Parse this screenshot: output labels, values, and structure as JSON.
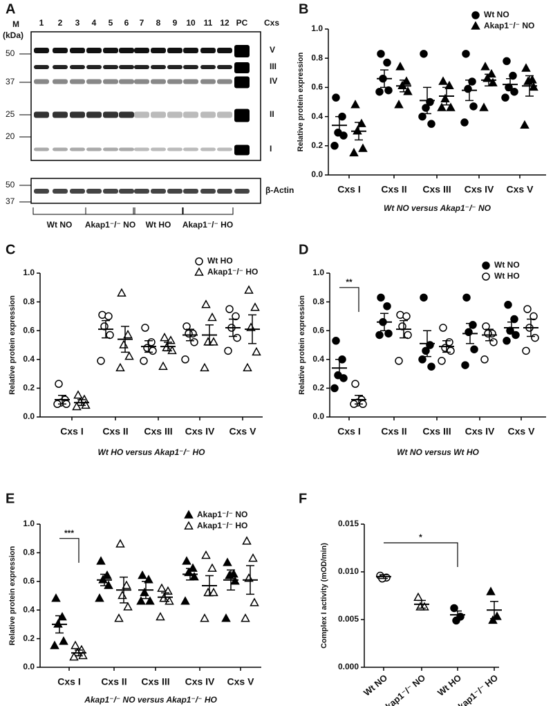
{
  "blot": {
    "panel": "A",
    "marker_title": "M",
    "marker_unit": "(kDa)",
    "lanes": [
      "1",
      "2",
      "3",
      "4",
      "5",
      "6",
      "7",
      "8",
      "9",
      "10",
      "11",
      "12",
      "PC"
    ],
    "lanes_title": "Cxs",
    "markers": [
      50,
      37,
      25,
      20
    ],
    "complexes": [
      "V",
      "III",
      "IV",
      "II",
      "I"
    ],
    "actin_markers": [
      50,
      37
    ],
    "actin_label": "β-Actin",
    "groups": [
      "Wt NO",
      "Akap1⁻/⁻ NO",
      "Wt HO",
      "Akap1⁻/⁻ HO"
    ]
  },
  "chart_data": [
    {
      "type": "dot",
      "panel": "B",
      "ylabel": "Relative protein expression",
      "xlabel": "Wt NO versus Akap1⁻/⁻ NO",
      "categories": [
        "Cxs I",
        "Cxs II",
        "Cxs III",
        "Cxs IV",
        "Cxs V"
      ],
      "ylim": [
        0,
        1
      ],
      "yticks": [
        {
          "value": 0,
          "label": "0.0"
        },
        0.2,
        0.4,
        0.6,
        0.8,
        {
          "value": 1,
          "label": "1.0"
        }
      ],
      "series": [
        {
          "name": "Wt NO",
          "marker": "filled-circle",
          "color": "#000000",
          "points": [
            [
              0.53,
              0.4,
              0.29,
              0.27,
              0.2
            ],
            [
              0.83,
              0.77,
              0.66,
              0.58,
              0.57
            ],
            [
              0.83,
              0.5,
              0.46,
              0.35,
              0.4
            ],
            [
              0.83,
              0.64,
              0.59,
              0.47,
              0.36
            ],
            [
              0.78,
              0.68,
              0.6,
              0.57,
              0.53
            ]
          ],
          "means": [
            0.34,
            0.66,
            0.51,
            0.58,
            0.62
          ],
          "sems": [
            0.06,
            0.06,
            0.09,
            0.07,
            0.04
          ]
        },
        {
          "name": "Akap1⁻/⁻ NO",
          "marker": "filled-triangle",
          "color": "#000000",
          "points": [
            [
              0.48,
              0.35,
              0.3,
              0.18,
              0.15
            ],
            [
              0.74,
              0.64,
              0.61,
              0.57,
              0.48
            ],
            [
              0.64,
              0.61,
              0.52,
              0.46,
              0.46
            ],
            [
              0.74,
              0.69,
              0.66,
              0.63,
              0.46
            ],
            [
              0.73,
              0.65,
              0.64,
              0.6,
              0.34
            ]
          ],
          "means": [
            0.3,
            0.61,
            0.54,
            0.65,
            0.61
          ],
          "sems": [
            0.06,
            0.04,
            0.06,
            0.04,
            0.07
          ]
        }
      ]
    },
    {
      "type": "dot",
      "panel": "C",
      "ylabel": "Relative protein expression",
      "xlabel": "Wt HO versus Akap1⁻/⁻ HO",
      "categories": [
        "Cxs I",
        "Cxs II",
        "Cxs III",
        "Cxs IV",
        "Cxs V"
      ],
      "ylim": [
        0,
        1
      ],
      "yticks": [
        {
          "value": 0,
          "label": "0.0"
        },
        0.2,
        0.4,
        0.6,
        0.8,
        {
          "value": 1,
          "label": "1.0"
        }
      ],
      "series": [
        {
          "name": "Wt HO",
          "marker": "open-circle",
          "color": "#000000",
          "points": [
            [
              0.23,
              0.12,
              0.1,
              0.09,
              0.09
            ],
            [
              0.71,
              0.7,
              0.63,
              0.57,
              0.39
            ],
            [
              0.62,
              0.52,
              0.48,
              0.46,
              0.39
            ],
            [
              0.63,
              0.58,
              0.58,
              0.52,
              0.4
            ],
            [
              0.75,
              0.7,
              0.62,
              0.55,
              0.46
            ]
          ],
          "means": [
            0.12,
            0.61,
            0.49,
            0.57,
            0.62
          ],
          "sems": [
            0.03,
            0.06,
            0.04,
            0.04,
            0.06
          ]
        },
        {
          "name": "Akap1⁻/⁻ HO",
          "marker": "open-triangle",
          "color": "#000000",
          "points": [
            [
              0.15,
              0.12,
              0.1,
              0.08,
              0.07
            ],
            [
              0.86,
              0.57,
              0.5,
              0.42,
              0.34
            ],
            [
              0.55,
              0.53,
              0.48,
              0.46,
              0.35
            ],
            [
              0.78,
              0.69,
              0.52,
              0.52,
              0.34
            ],
            [
              0.88,
              0.76,
              0.62,
              0.45,
              0.34
            ]
          ],
          "means": [
            0.1,
            0.54,
            0.49,
            0.57,
            0.61
          ],
          "sems": [
            0.02,
            0.09,
            0.03,
            0.07,
            0.1
          ]
        }
      ]
    },
    {
      "type": "dot",
      "panel": "D",
      "ylabel": "Relative protein expression",
      "xlabel": "Wt NO versus Wt HO",
      "annotation": "**",
      "categories": [
        "Cxs I",
        "Cxs II",
        "Cxs III",
        "Cxs IV",
        "Cxs V"
      ],
      "ylim": [
        0,
        1
      ],
      "yticks": [
        {
          "value": 0,
          "label": "0.0"
        },
        0.2,
        0.4,
        0.6,
        0.8,
        {
          "value": 1,
          "label": "1.0"
        }
      ],
      "series": [
        {
          "name": "Wt NO",
          "marker": "filled-circle",
          "color": "#000000",
          "points": [
            [
              0.53,
              0.4,
              0.29,
              0.27,
              0.2
            ],
            [
              0.83,
              0.77,
              0.66,
              0.58,
              0.57
            ],
            [
              0.83,
              0.5,
              0.46,
              0.35,
              0.4
            ],
            [
              0.83,
              0.64,
              0.59,
              0.47,
              0.36
            ],
            [
              0.78,
              0.68,
              0.6,
              0.57,
              0.53
            ]
          ],
          "means": [
            0.34,
            0.66,
            0.51,
            0.58,
            0.62
          ],
          "sems": [
            0.06,
            0.06,
            0.09,
            0.07,
            0.04
          ]
        },
        {
          "name": "Wt HO",
          "marker": "open-circle",
          "color": "#000000",
          "points": [
            [
              0.23,
              0.12,
              0.1,
              0.09,
              0.09
            ],
            [
              0.71,
              0.7,
              0.63,
              0.57,
              0.39
            ],
            [
              0.62,
              0.52,
              0.48,
              0.46,
              0.39
            ],
            [
              0.63,
              0.58,
              0.58,
              0.52,
              0.4
            ],
            [
              0.75,
              0.7,
              0.62,
              0.55,
              0.46
            ]
          ],
          "means": [
            0.12,
            0.61,
            0.49,
            0.57,
            0.62
          ],
          "sems": [
            0.03,
            0.06,
            0.04,
            0.04,
            0.06
          ]
        }
      ]
    },
    {
      "type": "dot",
      "panel": "E",
      "ylabel": "Relative protein expression",
      "xlabel": "Akap1⁻/⁻ NO versus Akap1⁻/⁻ HO",
      "annotation": "***",
      "categories": [
        "Cxs I",
        "Cxs II",
        "Cxs III",
        "Cxs IV",
        "Cxs V"
      ],
      "ylim": [
        0,
        1
      ],
      "yticks": [
        {
          "value": 0,
          "label": "0.0"
        },
        0.2,
        0.4,
        0.6,
        0.8,
        {
          "value": 1,
          "label": "1.0"
        }
      ],
      "series": [
        {
          "name": "Akap1⁻/⁻ NO",
          "marker": "filled-triangle",
          "color": "#000000",
          "points": [
            [
              0.48,
              0.35,
              0.3,
              0.18,
              0.15
            ],
            [
              0.74,
              0.64,
              0.61,
              0.57,
              0.48
            ],
            [
              0.64,
              0.61,
              0.52,
              0.46,
              0.46
            ],
            [
              0.74,
              0.69,
              0.66,
              0.63,
              0.46
            ],
            [
              0.73,
              0.65,
              0.64,
              0.6,
              0.34
            ]
          ],
          "means": [
            0.3,
            0.61,
            0.54,
            0.65,
            0.61
          ],
          "sems": [
            0.06,
            0.04,
            0.06,
            0.04,
            0.07
          ]
        },
        {
          "name": "Akap1⁻/⁻ HO",
          "marker": "open-triangle",
          "color": "#000000",
          "points": [
            [
              0.15,
              0.12,
              0.1,
              0.08,
              0.07
            ],
            [
              0.86,
              0.57,
              0.5,
              0.42,
              0.34
            ],
            [
              0.55,
              0.53,
              0.48,
              0.46,
              0.35
            ],
            [
              0.78,
              0.69,
              0.52,
              0.52,
              0.34
            ],
            [
              0.88,
              0.76,
              0.62,
              0.45,
              0.34
            ]
          ],
          "means": [
            0.1,
            0.54,
            0.49,
            0.57,
            0.61
          ],
          "sems": [
            0.02,
            0.09,
            0.03,
            0.07,
            0.1
          ]
        }
      ]
    },
    {
      "type": "dot",
      "panel": "F",
      "ylabel": "Complex I activity (mOD/min)",
      "annotation": "*",
      "categories": [
        "Wt NO",
        "Akap1⁻/⁻ NO",
        "Wt HO",
        "Akap1⁻/⁻ HO"
      ],
      "ylim": [
        0,
        0.015
      ],
      "yticks": [
        {
          "value": 0,
          "label": "0.000"
        },
        0.005,
        {
          "value": 0.01,
          "label": "0.010"
        },
        0.015
      ],
      "series": [
        {
          "markers": [
            "open-circle",
            "open-triangle",
            "filled-circle",
            "filled-triangle"
          ],
          "color": "#000000",
          "points": [
            [
              0.0096,
              0.0094,
              0.0093
            ],
            [
              0.0073,
              0.0063,
              0.0063
            ],
            [
              0.0062,
              0.0053,
              0.0049
            ],
            [
              0.0079,
              0.0053,
              0.0049
            ]
          ],
          "means": [
            0.0095,
            0.0066,
            0.0055,
            0.006
          ],
          "sems": [
            0.0002,
            0.0004,
            0.0004,
            0.0009
          ]
        }
      ]
    }
  ]
}
